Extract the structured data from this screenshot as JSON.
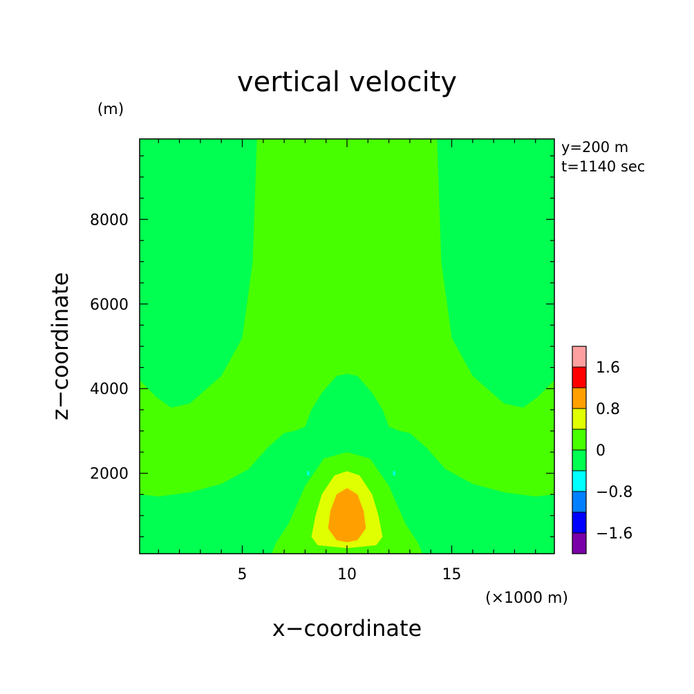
{
  "chart_data": {
    "type": "heatmap",
    "title": "vertical velocity",
    "xlabel": "x−coordinate",
    "ylabel": "z−coordinate",
    "x_unit": "(×1000 m)",
    "y_unit": "(m)",
    "annotations": [
      "y=200 m",
      "t=1140 sec"
    ],
    "xlim": [
      0.1,
      19.9
    ],
    "ylim": [
      100,
      9900
    ],
    "x_ticks": [
      {
        "value": 5,
        "label": "5"
      },
      {
        "value": 10,
        "label": "10"
      },
      {
        "value": 15,
        "label": "15"
      }
    ],
    "y_ticks": [
      {
        "value": 2000,
        "label": "2000"
      },
      {
        "value": 4000,
        "label": "4000"
      },
      {
        "value": 6000,
        "label": "6000"
      },
      {
        "value": 8000,
        "label": "8000"
      }
    ],
    "colorbar": {
      "levels": [
        -2.0,
        -1.6,
        -1.2,
        -0.8,
        -0.4,
        0,
        0.4,
        0.8,
        1.2,
        1.6,
        2.0
      ],
      "colors": [
        "#7a00a8",
        "#0000ff",
        "#0080ff",
        "#00ffff",
        "#00ff50",
        "#48ff00",
        "#e0ff00",
        "#ffa000",
        "#ff0000",
        "#ffa0a0"
      ],
      "tick_labels": [
        {
          "value": -1.6,
          "label": "−1.6"
        },
        {
          "value": -0.8,
          "label": "−0.8"
        },
        {
          "value": 0,
          "label": "0"
        },
        {
          "value": 0.8,
          "label": "0.8"
        },
        {
          "value": 1.6,
          "label": "1.6"
        }
      ]
    },
    "contours": [
      {
        "name": "upper-side-lobes",
        "level": -0.4,
        "color": "#00ff50",
        "points": [
          [
            0.1,
            9900
          ],
          [
            5.7,
            9900
          ],
          [
            5.5,
            7000
          ],
          [
            5.0,
            5200
          ],
          [
            4.0,
            4300
          ],
          [
            2.5,
            3650
          ],
          [
            1.6,
            3550
          ],
          [
            0.9,
            3800
          ],
          [
            0.1,
            4200
          ]
        ]
      },
      {
        "name": "upper-side-lobes-right",
        "level": -0.4,
        "color": "#00ff50",
        "points": [
          [
            19.9,
            9900
          ],
          [
            14.3,
            9900
          ],
          [
            14.5,
            7000
          ],
          [
            15.0,
            5200
          ],
          [
            16.0,
            4300
          ],
          [
            17.5,
            3650
          ],
          [
            18.4,
            3550
          ],
          [
            19.1,
            3800
          ],
          [
            19.9,
            4200
          ]
        ]
      },
      {
        "name": "central-zero-band",
        "level": -0.4,
        "color": "#00ff50",
        "points": [
          [
            0.1,
            1500
          ],
          [
            1.0,
            1450
          ],
          [
            2.5,
            1550
          ],
          [
            4.0,
            1750
          ],
          [
            5.3,
            2100
          ],
          [
            6.2,
            2600
          ],
          [
            7.0,
            2950
          ],
          [
            7.5,
            3000
          ],
          [
            8.0,
            3100
          ],
          [
            8.3,
            3500
          ],
          [
            8.8,
            3900
          ],
          [
            9.5,
            4300
          ],
          [
            10.0,
            4350
          ],
          [
            10.5,
            4300
          ],
          [
            11.2,
            3900
          ],
          [
            11.7,
            3500
          ],
          [
            12.0,
            3100
          ],
          [
            12.5,
            3000
          ],
          [
            13.0,
            2950
          ],
          [
            13.8,
            2600
          ],
          [
            14.7,
            2100
          ],
          [
            16.0,
            1750
          ],
          [
            17.5,
            1550
          ],
          [
            19.0,
            1450
          ],
          [
            19.9,
            1500
          ],
          [
            19.9,
            100
          ],
          [
            13.6,
            100
          ],
          [
            13.4,
            350
          ],
          [
            12.8,
            800
          ],
          [
            12.0,
            1700
          ],
          [
            11.1,
            2350
          ],
          [
            10.0,
            2500
          ],
          [
            8.9,
            2350
          ],
          [
            8.0,
            1700
          ],
          [
            7.2,
            800
          ],
          [
            6.6,
            350
          ],
          [
            6.4,
            100
          ],
          [
            0.1,
            100
          ]
        ]
      },
      {
        "name": "updraft-0.4",
        "level": 0.4,
        "color": "#e0ff00",
        "points": [
          [
            10.0,
            2050
          ],
          [
            10.6,
            1950
          ],
          [
            11.2,
            1500
          ],
          [
            11.5,
            1000
          ],
          [
            11.7,
            500
          ],
          [
            11.4,
            300
          ],
          [
            10.0,
            230
          ],
          [
            8.6,
            300
          ],
          [
            8.3,
            500
          ],
          [
            8.5,
            1000
          ],
          [
            8.8,
            1500
          ],
          [
            9.4,
            1950
          ]
        ]
      },
      {
        "name": "updraft-0.8",
        "level": 0.8,
        "color": "#ffa000",
        "points": [
          [
            10.0,
            1650
          ],
          [
            10.5,
            1500
          ],
          [
            10.8,
            1100
          ],
          [
            10.9,
            700
          ],
          [
            10.5,
            420
          ],
          [
            10.0,
            370
          ],
          [
            9.5,
            420
          ],
          [
            9.1,
            700
          ],
          [
            9.2,
            1100
          ],
          [
            9.5,
            1500
          ]
        ]
      },
      {
        "name": "downdraft-speck-left",
        "level": -0.8,
        "color": "#00ffff",
        "points": [
          [
            8.1,
            2050
          ],
          [
            8.2,
            2050
          ],
          [
            8.2,
            1950
          ],
          [
            8.1,
            1950
          ]
        ]
      },
      {
        "name": "downdraft-speck-right",
        "level": -0.8,
        "color": "#00ffff",
        "points": [
          [
            12.2,
            2050
          ],
          [
            12.3,
            2050
          ],
          [
            12.3,
            1950
          ],
          [
            12.2,
            1950
          ]
        ]
      }
    ]
  }
}
